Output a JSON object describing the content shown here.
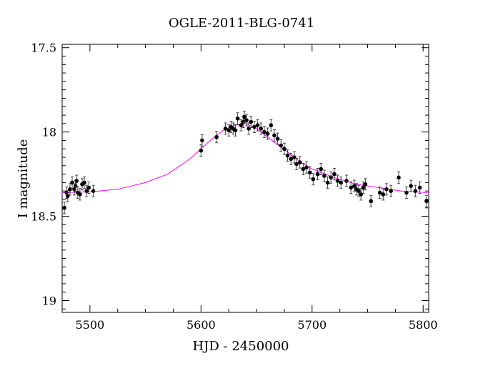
{
  "chart_data": {
    "type": "scatter",
    "title": "OGLE-2011-BLG-0741",
    "xlabel": "HJD - 2450000",
    "ylabel": "I magnitude",
    "xlim": [
      5475,
      5805
    ],
    "ylim": [
      17.48,
      19.07
    ],
    "y_inverted": true,
    "grid": false,
    "x_ticks": [
      5500,
      5600,
      5700,
      5800
    ],
    "y_ticks": [
      17.5,
      18,
      18.5,
      19
    ],
    "y_tick_labels": [
      "17.5",
      "18",
      "18.5",
      "19"
    ],
    "colors": {
      "points": "#000000",
      "model": "#ff00ff"
    },
    "series": [
      {
        "type": "scatter",
        "x": [
          5477,
          5479,
          5480,
          5482,
          5484,
          5486,
          5487,
          5488,
          5489,
          5491,
          5493,
          5495,
          5497,
          5499,
          5503,
          5600,
          5601,
          5614,
          5622,
          5625,
          5627,
          5629,
          5631,
          5633,
          5636,
          5638,
          5639,
          5641,
          5643,
          5645,
          5648,
          5651,
          5654,
          5657,
          5660,
          5663,
          5666,
          5669,
          5672,
          5675,
          5678,
          5681,
          5684,
          5686,
          5689,
          5692,
          5695,
          5698,
          5701,
          5705,
          5708,
          5711,
          5714,
          5717,
          5720,
          5723,
          5726,
          5731,
          5735,
          5738,
          5740,
          5742,
          5744,
          5746,
          5748,
          5753,
          5761,
          5764,
          5767,
          5771,
          5778,
          5785,
          5789,
          5793,
          5797,
          5803
        ],
        "y": [
          18.45,
          18.36,
          18.38,
          18.34,
          18.3,
          18.34,
          18.32,
          18.29,
          18.36,
          18.37,
          18.31,
          18.3,
          18.35,
          18.33,
          18.35,
          18.11,
          18.05,
          18.03,
          17.98,
          17.99,
          17.97,
          17.98,
          17.99,
          17.92,
          17.96,
          17.94,
          17.91,
          17.93,
          17.98,
          17.94,
          17.97,
          17.96,
          17.98,
          18.0,
          18.01,
          17.96,
          18.02,
          18.04,
          18.08,
          18.1,
          18.14,
          18.16,
          18.15,
          18.19,
          18.18,
          18.22,
          18.21,
          18.24,
          18.28,
          18.25,
          18.22,
          18.26,
          18.3,
          18.27,
          18.25,
          18.29,
          18.3,
          18.29,
          18.33,
          18.32,
          18.34,
          18.35,
          18.37,
          18.33,
          18.31,
          18.41,
          18.36,
          18.37,
          18.34,
          18.35,
          18.27,
          18.36,
          18.32,
          18.35,
          18.33,
          18.41
        ]
      },
      {
        "type": "line",
        "x": [
          5475,
          5500,
          5525,
          5550,
          5570,
          5590,
          5600,
          5610,
          5620,
          5630,
          5640,
          5650,
          5660,
          5670,
          5680,
          5690,
          5700,
          5720,
          5740,
          5760,
          5780,
          5805
        ],
        "y": [
          18.36,
          18.355,
          18.34,
          18.3,
          18.25,
          18.16,
          18.1,
          18.04,
          17.99,
          17.96,
          17.95,
          17.98,
          18.03,
          18.08,
          18.13,
          18.18,
          18.22,
          18.27,
          18.31,
          18.33,
          18.35,
          18.36
        ]
      }
    ]
  }
}
